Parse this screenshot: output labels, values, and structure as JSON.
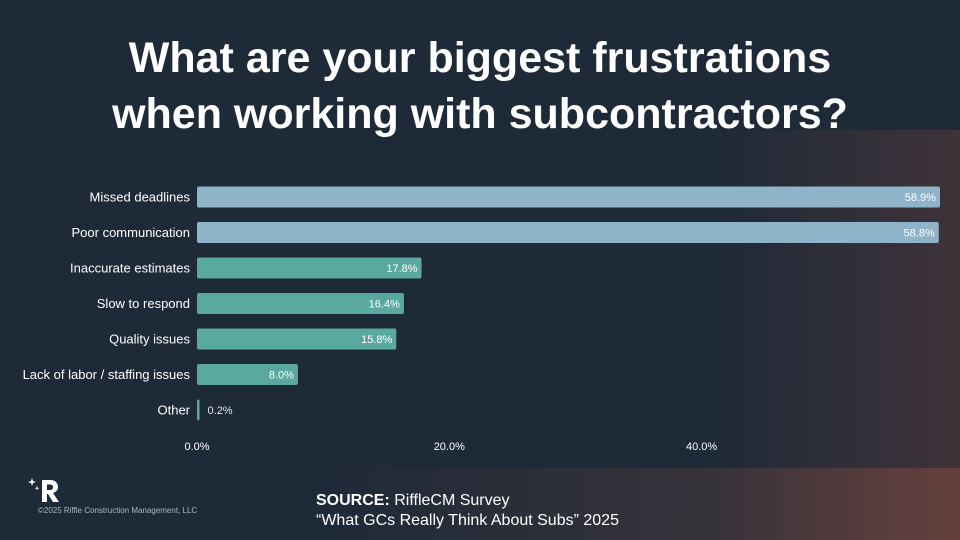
{
  "title": {
    "line1": "What are your biggest frustrations",
    "line2": "when working with subcontractors?"
  },
  "chart_data": {
    "type": "bar",
    "orientation": "horizontal",
    "categories": [
      "Missed deadlines",
      "Poor communication",
      "Inaccurate estimates",
      "Slow to respond",
      "Quality issues",
      "Lack of labor / staffing issues",
      "Other"
    ],
    "values": [
      58.9,
      58.8,
      17.8,
      16.4,
      15.8,
      8.0,
      0.2
    ],
    "value_labels": [
      "58.9%",
      "58.8%",
      "17.8%",
      "16.4%",
      "15.8%",
      "8.0%",
      "0.2%"
    ],
    "x_ticks": [
      0,
      20,
      40
    ],
    "x_tick_labels": [
      "0.0%",
      "20.0%",
      "40.0%"
    ],
    "xlim": [
      0,
      58.9
    ],
    "grid": false,
    "bar_colors": [
      "#8fb3c8",
      "#8fb3c8",
      "#5aa9a1",
      "#5aa9a1",
      "#5aa9a1",
      "#5aa9a1",
      "#5aa9a1"
    ]
  },
  "footer": {
    "copyright": "©2025 Riffle Construction Management, LLC",
    "source_label": "SOURCE:",
    "source_name": "RiffleCM Survey",
    "source_title": "“What GCs Really Think About Subs” 2025"
  },
  "colors": {
    "background": "#1f2a38",
    "text": "#ffffff"
  }
}
